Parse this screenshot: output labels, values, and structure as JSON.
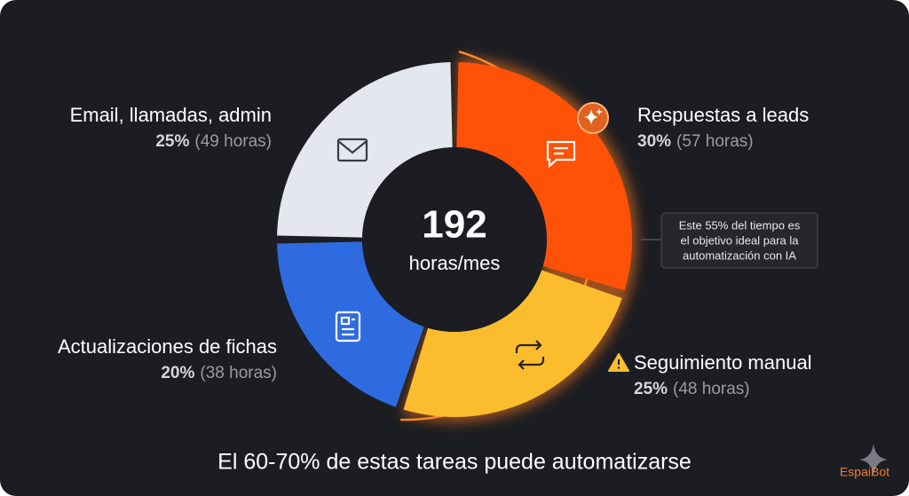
{
  "chart_data": {
    "type": "donut",
    "categories": [
      "Respuestas a leads",
      "Seguimiento manual",
      "Actualizaciones de fichas",
      "Email, llamadas, admin"
    ],
    "values": [
      30,
      25,
      20,
      25
    ],
    "value_labels": [
      "30%",
      "25%",
      "20%",
      "25%"
    ],
    "details": [
      "(57 horas)",
      "(48 horas)",
      "(38 horas)",
      "(49 horas)"
    ],
    "colors": [
      "#ff5208",
      "#fbbd2e",
      "#2f6be0",
      "#e4e7ee"
    ],
    "center_value": 192,
    "center_label": "horas/mes",
    "annotation": [
      "Este 55% del tiempo es",
      "el objetivo ideal para la",
      "automatización con IA"
    ],
    "footer": "El 60-70% de estas tareas puede automatizarse",
    "brand": "EspaiBot"
  }
}
